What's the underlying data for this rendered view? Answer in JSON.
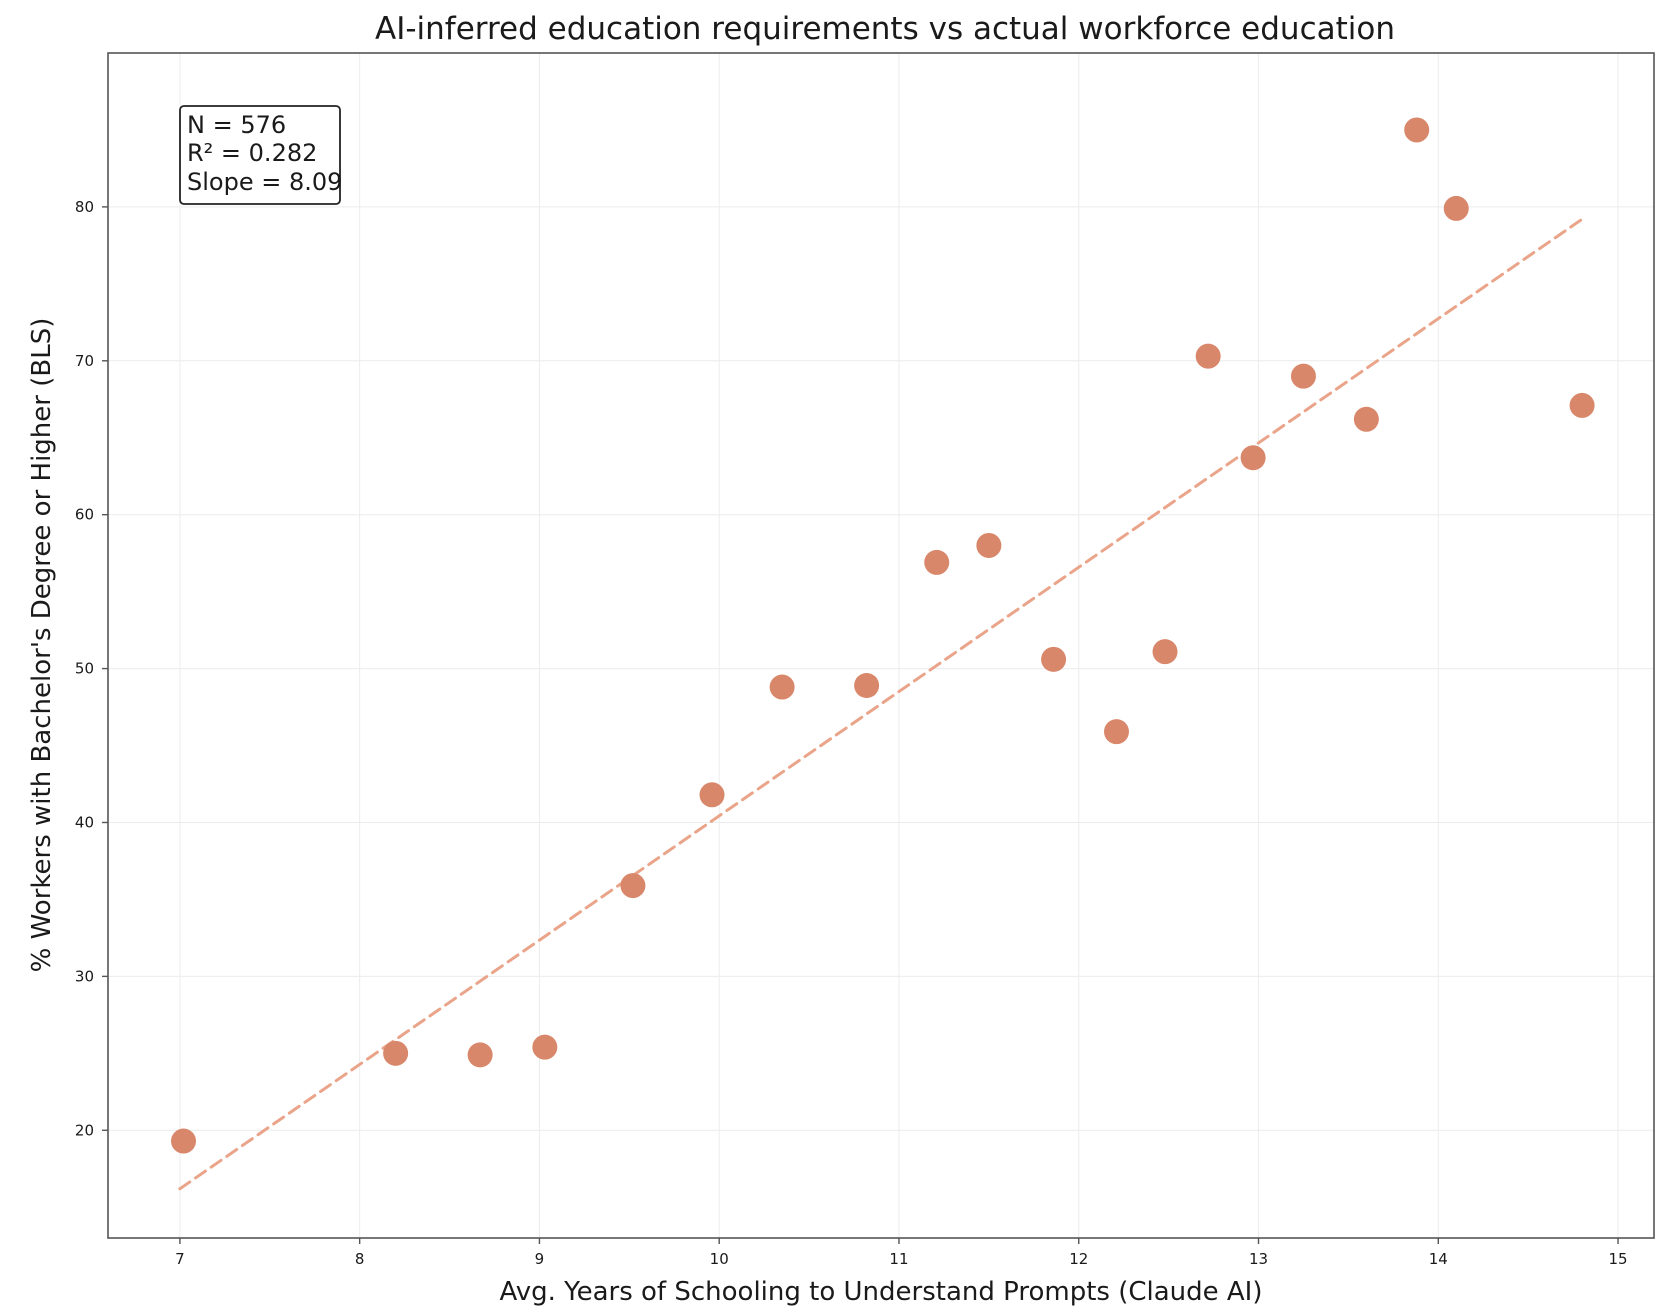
{
  "chart_data": {
    "type": "scatter",
    "title": "AI-inferred education requirements vs actual workforce education",
    "xlabel": "Avg. Years of Schooling to Understand Prompts (Claude AI)",
    "ylabel": "% Workers with Bachelor's Degree or Higher (BLS)",
    "xlim": [
      6.6,
      15.2
    ],
    "ylim": [
      13,
      90
    ],
    "xticks": [
      7,
      8,
      9,
      10,
      11,
      12,
      13,
      14,
      15
    ],
    "yticks": [
      20,
      30,
      40,
      50,
      60,
      70,
      80
    ],
    "grid": true,
    "point_color": "#d9876a",
    "trend_color": "#eaa48a",
    "stats_box": {
      "n": "N = 576",
      "r2": "R² = 0.282",
      "slope": "Slope = 8.09"
    },
    "trendline": {
      "style": "dashed",
      "points": [
        {
          "x": 7.0,
          "y": 16.2
        },
        {
          "x": 14.8,
          "y": 79.2
        }
      ]
    },
    "points": [
      {
        "x": 7.02,
        "y": 19.3
      },
      {
        "x": 8.2,
        "y": 25.0
      },
      {
        "x": 8.67,
        "y": 24.9
      },
      {
        "x": 9.03,
        "y": 25.4
      },
      {
        "x": 9.52,
        "y": 35.9
      },
      {
        "x": 9.96,
        "y": 41.8
      },
      {
        "x": 10.35,
        "y": 48.8
      },
      {
        "x": 10.82,
        "y": 48.9
      },
      {
        "x": 11.21,
        "y": 56.9
      },
      {
        "x": 11.5,
        "y": 58.0
      },
      {
        "x": 11.86,
        "y": 50.6
      },
      {
        "x": 12.21,
        "y": 45.9
      },
      {
        "x": 12.48,
        "y": 51.1
      },
      {
        "x": 12.72,
        "y": 70.3
      },
      {
        "x": 12.97,
        "y": 63.7
      },
      {
        "x": 13.25,
        "y": 69.0
      },
      {
        "x": 13.6,
        "y": 66.2
      },
      {
        "x": 13.88,
        "y": 85.0
      },
      {
        "x": 14.1,
        "y": 79.9
      },
      {
        "x": 14.8,
        "y": 67.1
      }
    ]
  }
}
